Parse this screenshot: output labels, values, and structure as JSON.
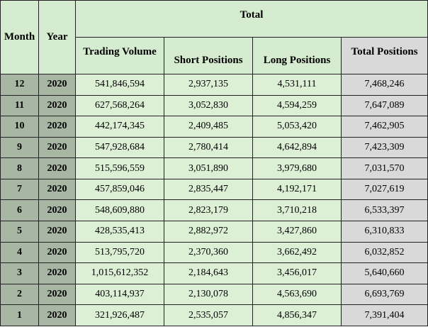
{
  "table": {
    "header": {
      "month": "Month",
      "year": "Year",
      "total": "Total",
      "columns": [
        "Trading Volume",
        "Short Positions",
        "Long Positions",
        "Total Positions"
      ]
    },
    "rows": [
      [
        "12",
        "2020",
        "541,846,594",
        "2,937,135",
        "4,531,111",
        "7,468,246"
      ],
      [
        "11",
        "2020",
        "627,568,264",
        "3,052,830",
        "4,594,259",
        "7,647,089"
      ],
      [
        "10",
        "2020",
        "442,174,345",
        "2,409,485",
        "5,053,420",
        "7,462,905"
      ],
      [
        "9",
        "2020",
        "547,928,684",
        "2,780,414",
        "4,642,894",
        "7,423,309"
      ],
      [
        "8",
        "2020",
        "515,596,559",
        "3,051,890",
        "3,979,680",
        "7,031,570"
      ],
      [
        "7",
        "2020",
        "457,859,046",
        "2,835,447",
        "4,192,171",
        "7,027,619"
      ],
      [
        "6",
        "2020",
        "548,609,880",
        "2,823,179",
        "3,710,218",
        "6,533,397"
      ],
      [
        "5",
        "2020",
        "428,535,413",
        "2,882,972",
        "3,427,860",
        "6,310,833"
      ],
      [
        "4",
        "2020",
        "513,795,720",
        "2,370,360",
        "3,662,492",
        "6,032,852"
      ],
      [
        "3",
        "2020",
        "1,015,612,352",
        "2,184,643",
        "3,456,017",
        "5,640,660"
      ],
      [
        "2",
        "2020",
        "403,114,937",
        "2,130,078",
        "4,563,690",
        "6,693,769"
      ],
      [
        "1",
        "2020",
        "321,926,487",
        "2,535,057",
        "4,856,347",
        "7,391,404"
      ]
    ]
  }
}
